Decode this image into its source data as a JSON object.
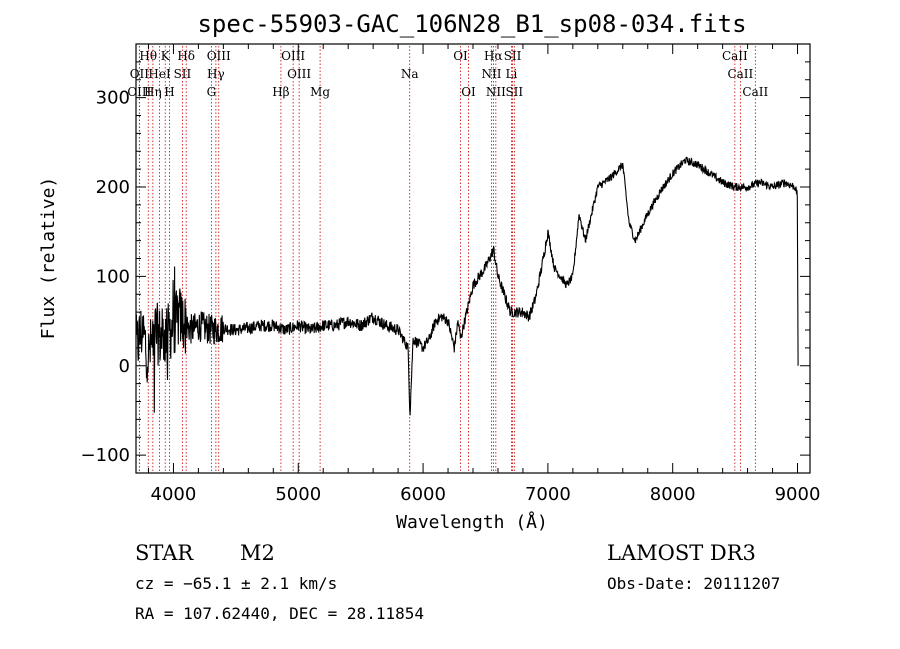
{
  "colors": {
    "spectrum": "#000000",
    "line_marker": "#cc0000",
    "frame": "#000000"
  },
  "chart_data": {
    "type": "line",
    "title": "spec-55903-GAC_106N28_B1_sp08-034.fits",
    "xlabel": "Wavelength (Å)",
    "ylabel": "Flux (relative)",
    "xlim": [
      3700,
      9100
    ],
    "ylim": [
      -120,
      360
    ],
    "xticks": [
      4000,
      5000,
      6000,
      7000,
      8000,
      9000
    ],
    "yticks": [
      -100,
      0,
      100,
      200,
      300
    ],
    "spectrum_anchors": [
      [
        3700,
        20
      ],
      [
        3750,
        40
      ],
      [
        3800,
        10
      ],
      [
        3850,
        40
      ],
      [
        3900,
        30
      ],
      [
        3950,
        35
      ],
      [
        4000,
        45
      ],
      [
        4050,
        55
      ],
      [
        4100,
        45
      ],
      [
        4150,
        40
      ],
      [
        4200,
        45
      ],
      [
        4300,
        40
      ],
      [
        4400,
        42
      ],
      [
        4500,
        40
      ],
      [
        4600,
        42
      ],
      [
        4700,
        45
      ],
      [
        4800,
        45
      ],
      [
        4900,
        40
      ],
      [
        5000,
        45
      ],
      [
        5100,
        40
      ],
      [
        5200,
        45
      ],
      [
        5300,
        45
      ],
      [
        5400,
        50
      ],
      [
        5500,
        45
      ],
      [
        5600,
        55
      ],
      [
        5700,
        45
      ],
      [
        5800,
        40
      ],
      [
        5880,
        20
      ],
      [
        5895,
        -55
      ],
      [
        5920,
        30
      ],
      [
        6000,
        20
      ],
      [
        6050,
        30
      ],
      [
        6100,
        50
      ],
      [
        6150,
        55
      ],
      [
        6200,
        50
      ],
      [
        6250,
        20
      ],
      [
        6280,
        50
      ],
      [
        6300,
        30
      ],
      [
        6400,
        90
      ],
      [
        6500,
        110
      ],
      [
        6565,
        130
      ],
      [
        6600,
        100
      ],
      [
        6650,
        80
      ],
      [
        6700,
        60
      ],
      [
        6800,
        60
      ],
      [
        6850,
        55
      ],
      [
        6900,
        75
      ],
      [
        6950,
        110
      ],
      [
        7000,
        150
      ],
      [
        7050,
        110
      ],
      [
        7100,
        100
      ],
      [
        7150,
        90
      ],
      [
        7200,
        100
      ],
      [
        7250,
        170
      ],
      [
        7300,
        140
      ],
      [
        7350,
        170
      ],
      [
        7400,
        200
      ],
      [
        7500,
        210
      ],
      [
        7600,
        225
      ],
      [
        7650,
        160
      ],
      [
        7700,
        140
      ],
      [
        7800,
        170
      ],
      [
        7900,
        195
      ],
      [
        8000,
        215
      ],
      [
        8100,
        230
      ],
      [
        8200,
        225
      ],
      [
        8300,
        215
      ],
      [
        8400,
        205
      ],
      [
        8500,
        200
      ],
      [
        8600,
        200
      ],
      [
        8700,
        205
      ],
      [
        8800,
        200
      ],
      [
        8900,
        205
      ],
      [
        8980,
        200
      ],
      [
        9000,
        190
      ],
      [
        9005,
        0
      ]
    ],
    "spectral_lines": [
      {
        "label": "Hθ",
        "wavelength": 3798,
        "row": 0
      },
      {
        "label": "K",
        "wavelength": 3934,
        "row": 0
      },
      {
        "label": "Hδ",
        "wavelength": 4102,
        "row": 0
      },
      {
        "label": "OIII",
        "wavelength": 4363,
        "row": 0
      },
      {
        "label": "OIII",
        "wavelength": 4959,
        "row": 0
      },
      {
        "label": "OI",
        "wavelength": 6300,
        "row": 0
      },
      {
        "label": "Hα",
        "wavelength": 6563,
        "row": 0
      },
      {
        "label": "SII",
        "wavelength": 6717,
        "row": 0
      },
      {
        "label": "CaII",
        "wavelength": 8498,
        "row": 0
      },
      {
        "label": "OII",
        "wavelength": 3727,
        "row": 1
      },
      {
        "label": "HeI",
        "wavelength": 3889,
        "row": 1
      },
      {
        "label": "SII",
        "wavelength": 4072,
        "row": 1
      },
      {
        "label": "Hγ",
        "wavelength": 4340,
        "row": 1
      },
      {
        "label": "OIII",
        "wavelength": 5007,
        "row": 1
      },
      {
        "label": "NII",
        "wavelength": 6548,
        "row": 1
      },
      {
        "label": "Li",
        "wavelength": 6708,
        "row": 1
      },
      {
        "label": "CaII",
        "wavelength": 8542,
        "row": 1
      },
      {
        "label": "OIII",
        "wavelength": 3727,
        "row": 2
      },
      {
        "label": "Hη",
        "wavelength": 3835,
        "row": 2
      },
      {
        "label": "H",
        "wavelength": 3968,
        "row": 2
      },
      {
        "label": "G",
        "wavelength": 4304,
        "row": 2
      },
      {
        "label": "Hβ",
        "wavelength": 4861,
        "row": 2
      },
      {
        "label": "Mg",
        "wavelength": 5175,
        "row": 2
      },
      {
        "label": "Na",
        "wavelength": 5893,
        "row": 3
      },
      {
        "label": "OI",
        "wavelength": 6364,
        "row": 2
      },
      {
        "label": "NII",
        "wavelength": 6583,
        "row": 2
      },
      {
        "label": "SII",
        "wavelength": 6731,
        "row": 2
      },
      {
        "label": "CaII",
        "wavelength": 8662,
        "row": 2
      }
    ]
  },
  "info": {
    "object_class": "STAR",
    "subclass": "M2",
    "survey": "LAMOST DR3",
    "cz": "cz = −65.1 ± 2.1 km/s",
    "obs_date": "Obs-Date: 20111207",
    "coords": "RA = 107.62440, DEC =  28.11854"
  }
}
